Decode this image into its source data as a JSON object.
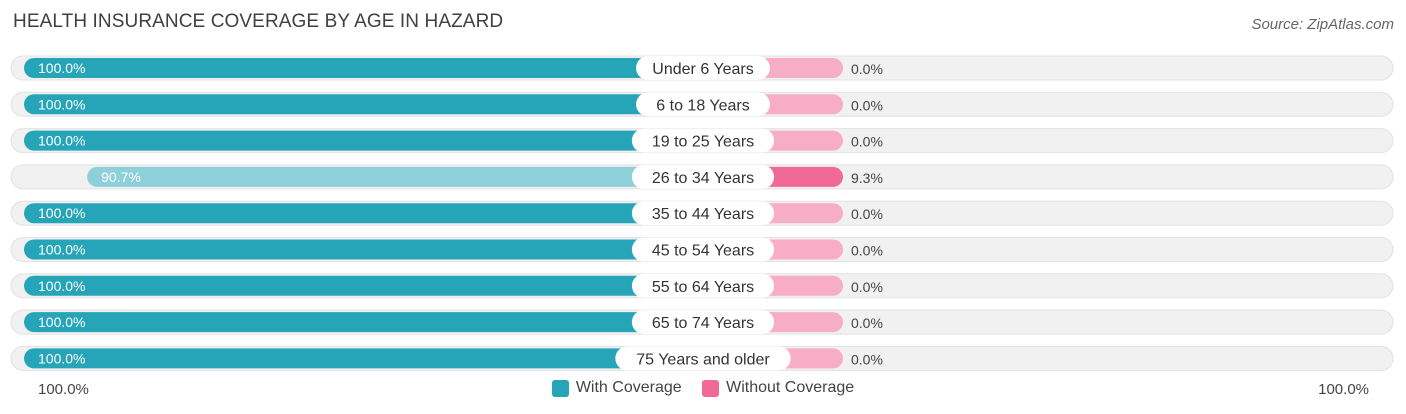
{
  "header": {
    "title": "HEALTH INSURANCE COVERAGE BY AGE IN HAZARD",
    "source": "Source: ZipAtlas.com"
  },
  "footer": {
    "left_label": "100.0%",
    "right_label": "100.0%"
  },
  "colors": {
    "with_coverage": "#26a5b8",
    "with_coverage_light": "#8dd0da",
    "without_coverage": "#f06a95",
    "without_coverage_light": "#f7adc6",
    "row_background": "#efefef"
  },
  "chart_data": {
    "type": "bar",
    "orientation": "horizontal-diverging",
    "title": "HEALTH INSURANCE COVERAGE BY AGE IN HAZARD",
    "categories": [
      "Under 6 Years",
      "6 to 18 Years",
      "19 to 25 Years",
      "26 to 34 Years",
      "35 to 44 Years",
      "45 to 54 Years",
      "55 to 64 Years",
      "65 to 74 Years",
      "75 Years and older"
    ],
    "series": [
      {
        "name": "With Coverage",
        "values": [
          100.0,
          100.0,
          100.0,
          90.7,
          100.0,
          100.0,
          100.0,
          100.0,
          100.0
        ],
        "labels": [
          "100.0%",
          "100.0%",
          "100.0%",
          "90.7%",
          "100.0%",
          "100.0%",
          "100.0%",
          "100.0%",
          "100.0%"
        ]
      },
      {
        "name": "Without Coverage",
        "values": [
          0.0,
          0.0,
          0.0,
          9.3,
          0.0,
          0.0,
          0.0,
          0.0,
          0.0
        ],
        "labels": [
          "0.0%",
          "0.0%",
          "0.0%",
          "9.3%",
          "0.0%",
          "0.0%",
          "0.0%",
          "0.0%",
          "0.0%"
        ]
      }
    ],
    "xlim": [
      0,
      100
    ],
    "legend": "bottom-center"
  }
}
